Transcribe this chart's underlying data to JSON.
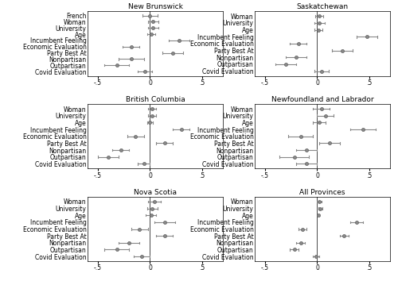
{
  "panels": [
    {
      "title": "New Brunswick",
      "labels": [
        "French",
        "Woman",
        "University",
        "Age",
        "Incumbent Feeling",
        "Economic Evaluation",
        "Party Best At",
        "Nonpartisan",
        "Outpartisan",
        "Covid Evaluation"
      ],
      "coef": [
        0.0,
        0.03,
        0.03,
        0.01,
        0.28,
        -0.18,
        0.22,
        -0.18,
        -0.32,
        -0.05
      ],
      "ci_lo": [
        -0.07,
        -0.02,
        -0.02,
        -0.03,
        0.18,
        -0.26,
        0.12,
        -0.3,
        -0.44,
        -0.12
      ],
      "ci_hi": [
        0.07,
        0.08,
        0.08,
        0.05,
        0.38,
        -0.1,
        0.32,
        -0.06,
        -0.2,
        0.02
      ]
    },
    {
      "title": "Saskatchewan",
      "labels": [
        "Woman",
        "University",
        "Age",
        "Incumbent Feeling",
        "Economic Evaluation",
        "Party Best At",
        "Nonpartisan",
        "Outpartisan",
        "Covid Evaluation"
      ],
      "coef": [
        0.02,
        0.02,
        0.01,
        0.48,
        -0.18,
        0.24,
        -0.2,
        -0.3,
        0.04
      ],
      "ci_lo": [
        -0.02,
        -0.03,
        -0.03,
        0.38,
        -0.26,
        0.14,
        -0.3,
        -0.4,
        -0.03
      ],
      "ci_hi": [
        0.06,
        0.07,
        0.05,
        0.58,
        -0.1,
        0.34,
        -0.1,
        -0.2,
        0.11
      ]
    },
    {
      "title": "British Columbia",
      "labels": [
        "Woman",
        "University",
        "Age",
        "Incumbent Feeling",
        "Economic Evaluation",
        "Party Best At",
        "Nonpartisan",
        "Outpartisan",
        "Covid Evaluation"
      ],
      "coef": [
        0.02,
        0.02,
        0.0,
        0.3,
        -0.14,
        0.14,
        -0.28,
        -0.4,
        -0.06
      ],
      "ci_lo": [
        -0.02,
        -0.02,
        -0.03,
        0.22,
        -0.22,
        0.06,
        -0.36,
        -0.5,
        -0.12
      ],
      "ci_hi": [
        0.06,
        0.06,
        0.03,
        0.38,
        -0.06,
        0.22,
        -0.2,
        -0.3,
        0.0
      ]
    },
    {
      "title": "Newfoundland and Labrador",
      "labels": [
        "Woman",
        "University",
        "Age",
        "Incumbent Feeling",
        "Economic Evaluation",
        "Party Best At",
        "Nonpartisan",
        "Outpartisan",
        "Covid Evaluation"
      ],
      "coef": [
        0.04,
        0.08,
        0.02,
        0.44,
        -0.16,
        0.12,
        -0.1,
        -0.22,
        -0.1
      ],
      "ci_lo": [
        -0.04,
        0.0,
        -0.04,
        0.32,
        -0.28,
        0.02,
        -0.2,
        -0.36,
        -0.2
      ],
      "ci_hi": [
        0.12,
        0.16,
        0.08,
        0.56,
        -0.04,
        0.22,
        0.0,
        -0.08,
        0.0
      ]
    },
    {
      "title": "Nova Scotia",
      "labels": [
        "Woman",
        "University",
        "Age",
        "Incumbent Feeling",
        "Economic Evaluation",
        "Party Best At",
        "Nonpartisan",
        "Outpartisan",
        "Covid Evaluation"
      ],
      "coef": [
        0.04,
        0.02,
        0.01,
        0.14,
        -0.1,
        0.14,
        -0.2,
        -0.32,
        -0.08
      ],
      "ci_lo": [
        -0.02,
        -0.03,
        -0.04,
        0.04,
        -0.18,
        0.06,
        -0.3,
        -0.44,
        -0.16
      ],
      "ci_hi": [
        0.1,
        0.07,
        0.06,
        0.24,
        -0.02,
        0.22,
        -0.1,
        -0.2,
        0.0
      ]
    },
    {
      "title": "All Provinces",
      "labels": [
        "Woman",
        "University",
        "Age",
        "Incumbent Feeling",
        "Economic Evaluation",
        "Party Best At",
        "Nonpartisan",
        "Outpartisan",
        "Covid Evaluation"
      ],
      "coef": [
        0.02,
        0.03,
        0.01,
        0.38,
        -0.14,
        0.26,
        -0.16,
        -0.22,
        -0.01
      ],
      "ci_lo": [
        0.0,
        0.01,
        0.0,
        0.32,
        -0.18,
        0.22,
        -0.2,
        -0.26,
        -0.04
      ],
      "ci_hi": [
        0.04,
        0.05,
        0.02,
        0.44,
        -0.1,
        0.3,
        -0.12,
        -0.18,
        0.02
      ]
    }
  ],
  "xlim": [
    -0.6,
    0.7
  ],
  "xticks": [
    -0.5,
    0,
    0.5
  ],
  "xticklabels": [
    "-.5",
    "0",
    ".5"
  ],
  "dot_color": "#888888",
  "dot_size": 3.0,
  "line_color": "#888888",
  "line_width": 0.8,
  "title_fontsize": 6.5,
  "label_fontsize": 5.5,
  "tick_fontsize": 5.5
}
